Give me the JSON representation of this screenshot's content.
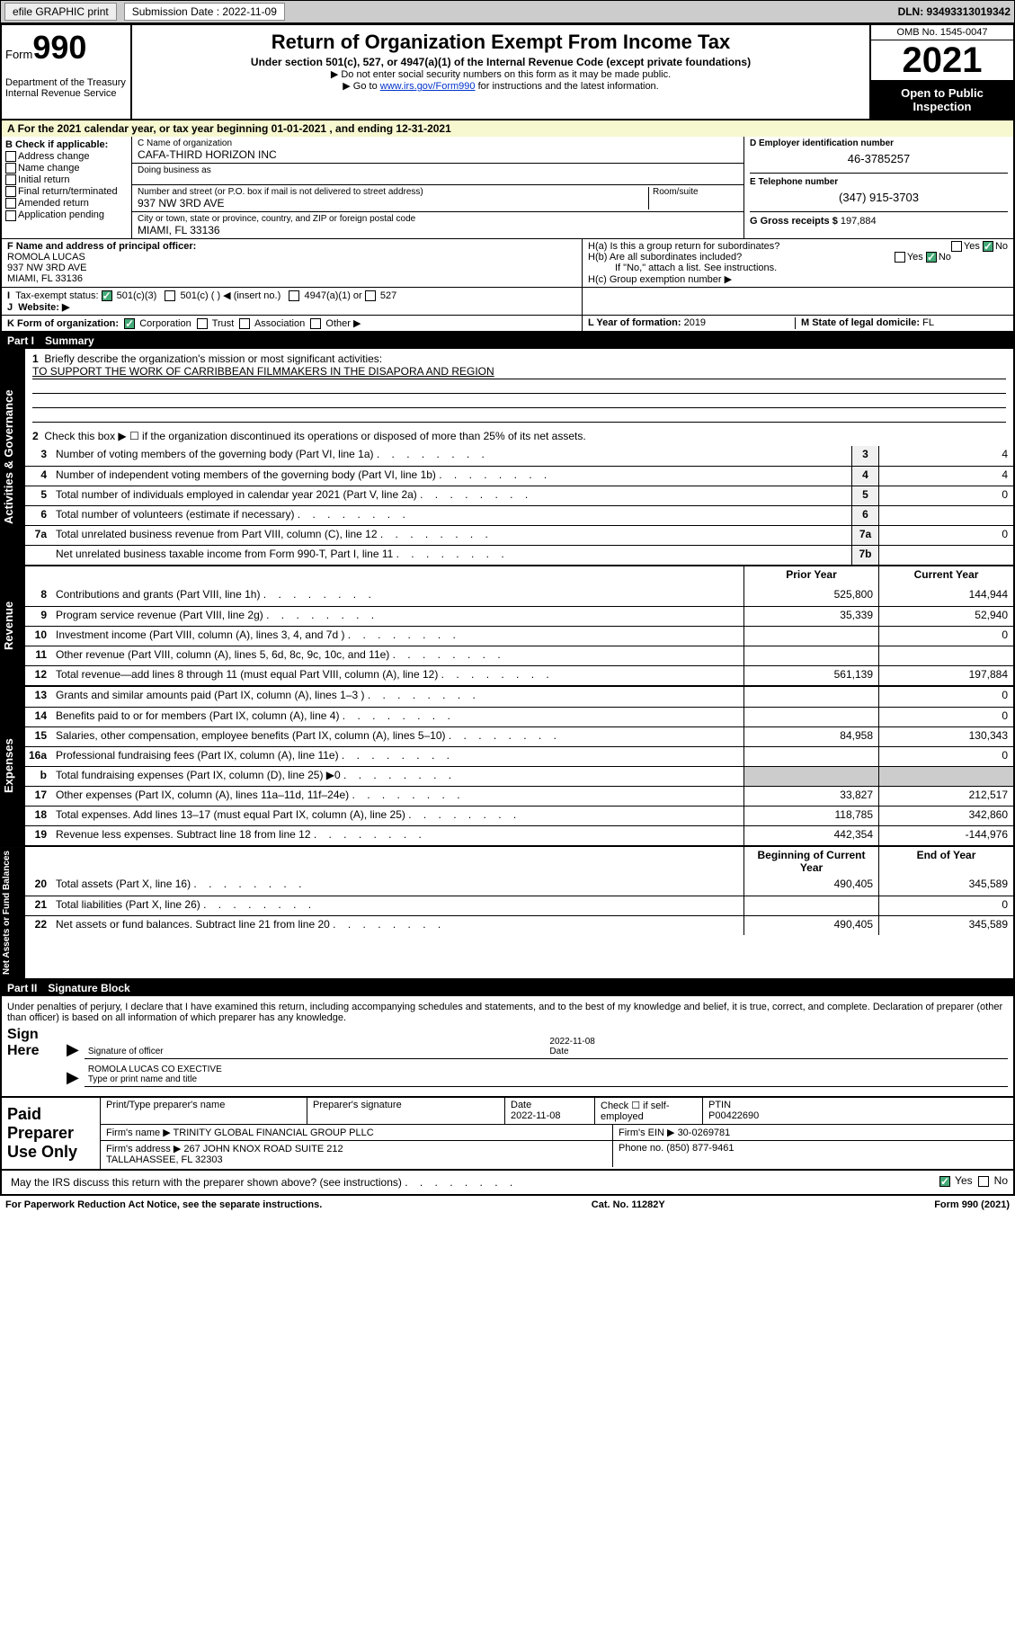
{
  "topbar": {
    "efile": "efile GRAPHIC print",
    "submission_label": "Submission Date : 2022-11-09",
    "dln": "DLN: 93493313019342"
  },
  "header": {
    "form_word": "Form",
    "form_num": "990",
    "dept": "Department of the Treasury\nInternal Revenue Service",
    "title": "Return of Organization Exempt From Income Tax",
    "sub1": "Under section 501(c), 527, or 4947(a)(1) of the Internal Revenue Code (except private foundations)",
    "sub2a": "▶ Do not enter social security numbers on this form as it may be made public.",
    "sub2b_pre": "▶ Go to ",
    "sub2b_link": "www.irs.gov/Form990",
    "sub2b_post": " for instructions and the latest information.",
    "omb": "OMB No. 1545-0047",
    "year": "2021",
    "open": "Open to Public Inspection"
  },
  "A": {
    "text": "For the 2021 calendar year, or tax year beginning 01-01-2021   , and ending 12-31-2021"
  },
  "B": {
    "label": "B Check if applicable:",
    "items": [
      "Address change",
      "Name change",
      "Initial return",
      "Final return/terminated",
      "Amended return",
      "Application pending"
    ]
  },
  "C": {
    "name_lbl": "C Name of organization",
    "name": "CAFA-THIRD HORIZON INC",
    "dba_lbl": "Doing business as",
    "dba": "",
    "addr_lbl": "Number and street (or P.O. box if mail is not delivered to street address)",
    "room_lbl": "Room/suite",
    "addr": "937 NW 3RD AVE",
    "city_lbl": "City or town, state or province, country, and ZIP or foreign postal code",
    "city": "MIAMI, FL  33136"
  },
  "D": {
    "lbl": "D Employer identification number",
    "val": "46-3785257"
  },
  "E": {
    "lbl": "E Telephone number",
    "val": "(347) 915-3703"
  },
  "G": {
    "lbl": "G Gross receipts $",
    "val": "197,884"
  },
  "F": {
    "lbl": "F Name and address of principal officer:",
    "name": "ROMOLA LUCAS",
    "addr": "937 NW 3RD AVE\nMIAMI, FL  33136"
  },
  "H": {
    "a": "H(a)  Is this a group return for subordinates?",
    "a_no": true,
    "b": "H(b)  Are all subordinates included?",
    "b_no": true,
    "b_note": "If \"No,\" attach a list. See instructions.",
    "c": "H(c)  Group exemption number ▶"
  },
  "I": {
    "lbl": "Tax-exempt status:",
    "c3": "501(c)(3)",
    "c": "501(c) (  ) ◀ (insert no.)",
    "a1": "4947(a)(1) or",
    "527": "527"
  },
  "J": {
    "lbl": "Website: ▶",
    "val": ""
  },
  "K": {
    "lbl": "K Form of organization:",
    "opts": [
      "Corporation",
      "Trust",
      "Association",
      "Other ▶"
    ]
  },
  "L": {
    "lbl": "L Year of formation:",
    "val": "2019"
  },
  "M": {
    "lbl": "M State of legal domicile:",
    "val": "FL"
  },
  "partI": {
    "num": "Part I",
    "title": "Summary"
  },
  "summary": {
    "q1": "Briefly describe the organization's mission or most significant activities:",
    "mission": "TO SUPPORT THE WORK OF CARRIBBEAN FILMMAKERS IN THE DISAPORA AND REGION",
    "q2": "Check this box ▶ ☐  if the organization discontinued its operations or disposed of more than 25% of its net assets."
  },
  "gov_lines": [
    {
      "n": "3",
      "t": "Number of voting members of the governing body (Part VI, line 1a)",
      "box": "3",
      "v": "4"
    },
    {
      "n": "4",
      "t": "Number of independent voting members of the governing body (Part VI, line 1b)",
      "box": "4",
      "v": "4"
    },
    {
      "n": "5",
      "t": "Total number of individuals employed in calendar year 2021 (Part V, line 2a)",
      "box": "5",
      "v": "0"
    },
    {
      "n": "6",
      "t": "Total number of volunteers (estimate if necessary)",
      "box": "6",
      "v": ""
    },
    {
      "n": "7a",
      "t": "Total unrelated business revenue from Part VIII, column (C), line 12",
      "box": "7a",
      "v": "0"
    },
    {
      "n": "",
      "t": "Net unrelated business taxable income from Form 990-T, Part I, line 11",
      "box": "7b",
      "v": ""
    }
  ],
  "colhdr": {
    "prior": "Prior Year",
    "current": "Current Year"
  },
  "rev_lines": [
    {
      "n": "8",
      "t": "Contributions and grants (Part VIII, line 1h)",
      "p": "525,800",
      "c": "144,944"
    },
    {
      "n": "9",
      "t": "Program service revenue (Part VIII, line 2g)",
      "p": "35,339",
      "c": "52,940"
    },
    {
      "n": "10",
      "t": "Investment income (Part VIII, column (A), lines 3, 4, and 7d )",
      "p": "",
      "c": "0"
    },
    {
      "n": "11",
      "t": "Other revenue (Part VIII, column (A), lines 5, 6d, 8c, 9c, 10c, and 11e)",
      "p": "",
      "c": ""
    },
    {
      "n": "12",
      "t": "Total revenue—add lines 8 through 11 (must equal Part VIII, column (A), line 12)",
      "p": "561,139",
      "c": "197,884"
    }
  ],
  "exp_lines": [
    {
      "n": "13",
      "t": "Grants and similar amounts paid (Part IX, column (A), lines 1–3 )",
      "p": "",
      "c": "0"
    },
    {
      "n": "14",
      "t": "Benefits paid to or for members (Part IX, column (A), line 4)",
      "p": "",
      "c": "0"
    },
    {
      "n": "15",
      "t": "Salaries, other compensation, employee benefits (Part IX, column (A), lines 5–10)",
      "p": "84,958",
      "c": "130,343"
    },
    {
      "n": "16a",
      "t": "Professional fundraising fees (Part IX, column (A), line 11e)",
      "p": "",
      "c": "0"
    },
    {
      "n": "b",
      "t": "Total fundraising expenses (Part IX, column (D), line 25) ▶0",
      "p": "shade",
      "c": "shade"
    },
    {
      "n": "17",
      "t": "Other expenses (Part IX, column (A), lines 11a–11d, 11f–24e)",
      "p": "33,827",
      "c": "212,517"
    },
    {
      "n": "18",
      "t": "Total expenses. Add lines 13–17 (must equal Part IX, column (A), line 25)",
      "p": "118,785",
      "c": "342,860"
    },
    {
      "n": "19",
      "t": "Revenue less expenses. Subtract line 18 from line 12",
      "p": "442,354",
      "c": "-144,976"
    }
  ],
  "net_hdr": {
    "b": "Beginning of Current Year",
    "e": "End of Year"
  },
  "net_lines": [
    {
      "n": "20",
      "t": "Total assets (Part X, line 16)",
      "p": "490,405",
      "c": "345,589"
    },
    {
      "n": "21",
      "t": "Total liabilities (Part X, line 26)",
      "p": "",
      "c": "0"
    },
    {
      "n": "22",
      "t": "Net assets or fund balances. Subtract line 21 from line 20",
      "p": "490,405",
      "c": "345,589"
    }
  ],
  "tabs": {
    "gov": "Activities & Governance",
    "rev": "Revenue",
    "exp": "Expenses",
    "net": "Net Assets or Fund Balances"
  },
  "partII": {
    "num": "Part II",
    "title": "Signature Block"
  },
  "sig": {
    "penalty": "Under penalties of perjury, I declare that I have examined this return, including accompanying schedules and statements, and to the best of my knowledge and belief, it is true, correct, and complete. Declaration of preparer (other than officer) is based on all information of which preparer has any knowledge.",
    "sign_here": "Sign Here",
    "officer_sig_lbl": "Signature of officer",
    "date_lbl": "Date",
    "date": "2022-11-08",
    "officer_name": "ROMOLA LUCAS CO EXECTIVE",
    "officer_name_lbl": "Type or print name and title"
  },
  "prep": {
    "lbl": "Paid Preparer Use Only",
    "h": [
      "Print/Type preparer's name",
      "Preparer's signature",
      "Date",
      "",
      "PTIN"
    ],
    "date": "2022-11-08",
    "check_lbl": "Check ☐ if self-employed",
    "ptin": "P00422690",
    "firm_lbl": "Firm's name    ▶",
    "firm": "TRINITY GLOBAL FINANCIAL GROUP PLLC",
    "ein_lbl": "Firm's EIN ▶",
    "ein": "30-0269781",
    "addr_lbl": "Firm's address ▶",
    "addr": "267 JOHN KNOX ROAD SUITE 212\nTALLAHASSEE, FL  32303",
    "phone_lbl": "Phone no.",
    "phone": "(850) 877-9461"
  },
  "discuss": {
    "q": "May the IRS discuss this return with the preparer shown above? (see instructions)",
    "yes": true
  },
  "footer": {
    "l": "For Paperwork Reduction Act Notice, see the separate instructions.",
    "c": "Cat. No. 11282Y",
    "r": "Form 990 (2021)"
  },
  "colors": {
    "link": "#0033cc",
    "taxyear_bg": "#f7f7d0",
    "check_green": "#44aa77"
  }
}
